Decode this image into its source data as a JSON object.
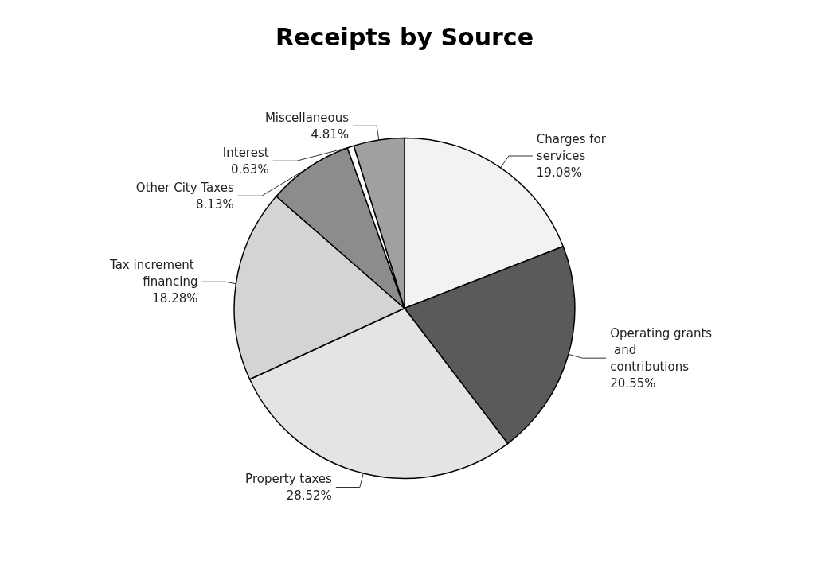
{
  "chart_data": {
    "type": "pie",
    "title": "Receipts by Source",
    "categories": [
      "Charges for services",
      "Operating grants and contributions",
      "Property taxes",
      "Tax increment financing",
      "Other City Taxes",
      "Interest",
      "Miscellaneous"
    ],
    "values": [
      19.08,
      20.55,
      28.52,
      18.28,
      8.13,
      0.63,
      4.81
    ],
    "value_labels": [
      "19.08%",
      "20.55%",
      "28.52%",
      "18.28%",
      "8.13%",
      "0.63%",
      "4.81%"
    ],
    "colors": [
      "#f2f2f2",
      "#5a5a5a",
      "#e4e4e4",
      "#d4d4d4",
      "#8c8c8c",
      "#ffffff",
      "#a0a0a0"
    ],
    "legend": false
  }
}
